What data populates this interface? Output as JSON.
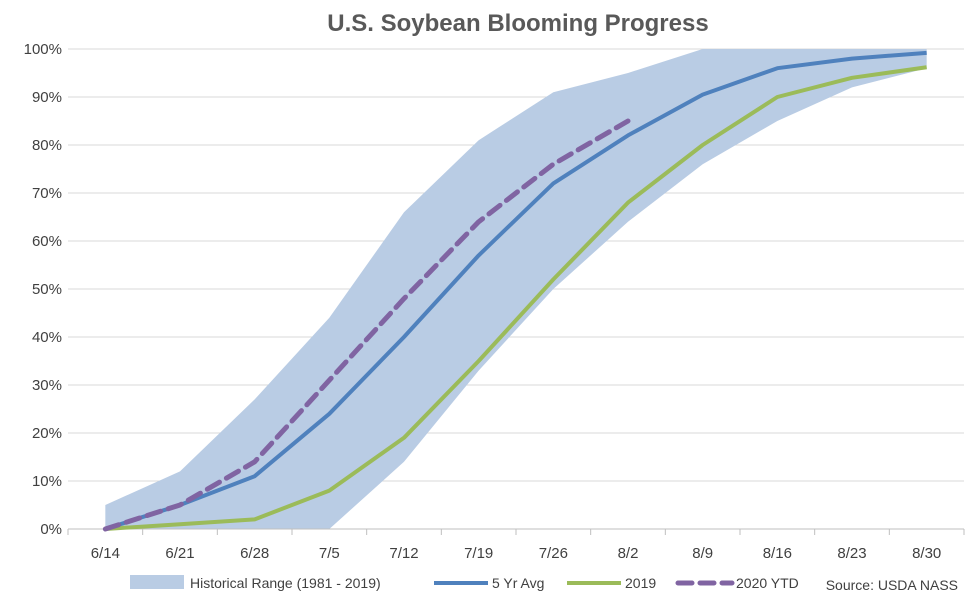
{
  "chart_data": {
    "type": "line",
    "title": "U.S. Soybean Blooming Progress",
    "categories": [
      "6/14",
      "6/21",
      "6/28",
      "7/5",
      "7/12",
      "7/19",
      "7/26",
      "8/2",
      "8/9",
      "8/16",
      "8/23",
      "8/30"
    ],
    "y_ticks": [
      "0%",
      "10%",
      "20%",
      "30%",
      "40%",
      "50%",
      "60%",
      "70%",
      "80%",
      "90%",
      "100%"
    ],
    "ylim": [
      0,
      100
    ],
    "grid": true,
    "legend_position": "bottom",
    "range": {
      "name": "Historical Range (1981 - 2019)",
      "color": "#b9cce4",
      "low": [
        0,
        0,
        0,
        0,
        14,
        33,
        50,
        64,
        76,
        85,
        92,
        96
      ],
      "high": [
        5,
        12,
        27,
        44,
        66,
        81,
        91,
        95,
        100,
        100,
        100,
        100
      ]
    },
    "series": [
      {
        "name": "5 Yr Avg",
        "color": "#4f81bd",
        "style": "solid",
        "values": [
          0,
          5,
          11,
          24,
          40,
          57,
          72,
          82,
          90.5,
          96,
          98,
          99.2
        ]
      },
      {
        "name": "2019",
        "color": "#9bbb59",
        "style": "solid",
        "values": [
          0,
          1,
          2,
          8,
          19,
          35,
          52,
          68,
          80,
          90,
          94,
          96.2
        ]
      },
      {
        "name": "2020 YTD",
        "color": "#8064a2",
        "style": "dashed",
        "values": [
          0,
          5,
          14,
          31,
          48,
          64,
          76,
          85,
          null,
          null,
          null,
          null
        ]
      }
    ],
    "source_note": "Source: USDA NASS"
  }
}
